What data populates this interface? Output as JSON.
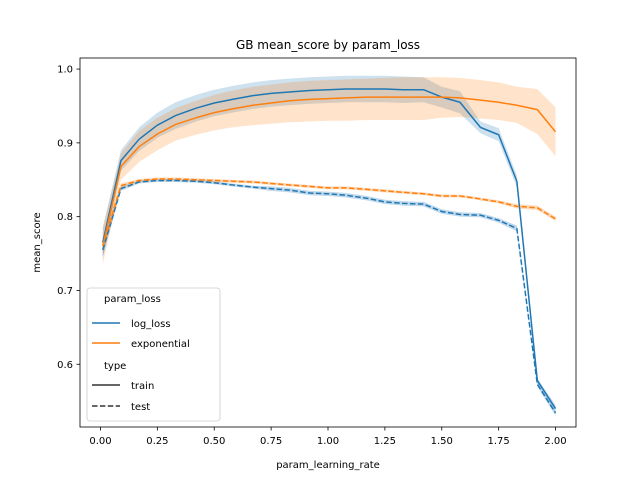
{
  "chart_data": {
    "type": "line",
    "title": "GB mean_score by param_loss",
    "xlabel": "param_learning_rate",
    "ylabel": "mean_score",
    "xlim": [
      -0.09,
      2.09
    ],
    "ylim": [
      0.515,
      1.015
    ],
    "xticks": [
      0.0,
      0.25,
      0.5,
      0.75,
      1.0,
      1.25,
      1.5,
      1.75,
      2.0
    ],
    "xtick_labels": [
      "0.00",
      "0.25",
      "0.50",
      "0.75",
      "1.00",
      "1.25",
      "1.50",
      "1.75",
      "2.00"
    ],
    "yticks": [
      0.6,
      0.7,
      0.8,
      0.9,
      1.0
    ],
    "ytick_labels": [
      "0.6",
      "0.7",
      "0.8",
      "0.9",
      "1.0"
    ],
    "grid": false,
    "legend": {
      "placement": "lower-left",
      "hue_title": "param_loss",
      "style_title": "type",
      "hue_entries": [
        {
          "label": "log_loss",
          "color": "#1f77b4"
        },
        {
          "label": "exponential",
          "color": "#ff7f0e"
        }
      ],
      "style_entries": [
        {
          "label": "train",
          "dash": "solid"
        },
        {
          "label": "test",
          "dash": "dashed"
        }
      ]
    },
    "series": [
      {
        "loss": "log_loss",
        "type": "train",
        "color": "#1f77b4",
        "dash": "solid",
        "x": [
          0.01,
          0.09,
          0.17,
          0.25,
          0.33,
          0.42,
          0.5,
          0.58,
          0.67,
          0.75,
          0.83,
          0.92,
          1.0,
          1.08,
          1.17,
          1.25,
          1.33,
          1.42,
          1.5,
          1.58,
          1.67,
          1.75,
          1.83,
          1.92,
          2.0
        ],
        "y": [
          0.765,
          0.876,
          0.905,
          0.924,
          0.937,
          0.947,
          0.954,
          0.959,
          0.964,
          0.967,
          0.969,
          0.971,
          0.972,
          0.973,
          0.973,
          0.973,
          0.972,
          0.972,
          0.962,
          0.955,
          0.921,
          0.911,
          0.848,
          0.578,
          0.54
        ],
        "lower": [
          0.745,
          0.862,
          0.889,
          0.907,
          0.919,
          0.929,
          0.936,
          0.941,
          0.946,
          0.949,
          0.951,
          0.953,
          0.954,
          0.955,
          0.955,
          0.955,
          0.954,
          0.955,
          0.948,
          0.94,
          0.913,
          0.902,
          0.84,
          0.575,
          0.535
        ],
        "upper": [
          0.785,
          0.89,
          0.921,
          0.941,
          0.955,
          0.965,
          0.972,
          0.977,
          0.982,
          0.985,
          0.987,
          0.989,
          0.99,
          0.991,
          0.991,
          0.991,
          0.99,
          0.989,
          0.976,
          0.97,
          0.929,
          0.92,
          0.856,
          0.581,
          0.545
        ]
      },
      {
        "loss": "exponential",
        "type": "train",
        "color": "#ff7f0e",
        "dash": "solid",
        "x": [
          0.01,
          0.09,
          0.17,
          0.25,
          0.33,
          0.42,
          0.5,
          0.58,
          0.67,
          0.75,
          0.83,
          0.92,
          1.0,
          1.08,
          1.17,
          1.25,
          1.33,
          1.42,
          1.5,
          1.58,
          1.67,
          1.75,
          1.83,
          1.92,
          2.0
        ],
        "y": [
          0.76,
          0.868,
          0.895,
          0.912,
          0.925,
          0.934,
          0.941,
          0.946,
          0.951,
          0.954,
          0.957,
          0.959,
          0.96,
          0.961,
          0.962,
          0.962,
          0.962,
          0.962,
          0.962,
          0.961,
          0.958,
          0.955,
          0.951,
          0.945,
          0.915
        ],
        "lower": [
          0.735,
          0.85,
          0.874,
          0.89,
          0.903,
          0.911,
          0.917,
          0.921,
          0.924,
          0.926,
          0.928,
          0.929,
          0.93,
          0.93,
          0.931,
          0.931,
          0.931,
          0.931,
          0.934,
          0.935,
          0.933,
          0.931,
          0.927,
          0.912,
          0.882
        ],
        "upper": [
          0.785,
          0.886,
          0.916,
          0.934,
          0.947,
          0.957,
          0.965,
          0.971,
          0.976,
          0.979,
          0.982,
          0.984,
          0.985,
          0.986,
          0.987,
          0.988,
          0.989,
          0.989,
          0.989,
          0.988,
          0.985,
          0.982,
          0.976,
          0.973,
          0.948
        ]
      },
      {
        "loss": "log_loss",
        "type": "test",
        "color": "#1f77b4",
        "dash": "dashed",
        "x": [
          0.01,
          0.09,
          0.17,
          0.25,
          0.33,
          0.42,
          0.5,
          0.58,
          0.67,
          0.75,
          0.83,
          0.92,
          1.0,
          1.08,
          1.17,
          1.25,
          1.33,
          1.42,
          1.5,
          1.58,
          1.67,
          1.75,
          1.83,
          1.92,
          2.0
        ],
        "y": [
          0.755,
          0.838,
          0.847,
          0.849,
          0.849,
          0.848,
          0.846,
          0.843,
          0.84,
          0.838,
          0.836,
          0.832,
          0.831,
          0.829,
          0.825,
          0.82,
          0.818,
          0.817,
          0.807,
          0.803,
          0.802,
          0.795,
          0.784,
          0.573,
          0.534
        ],
        "lower": [
          0.745,
          0.835,
          0.845,
          0.847,
          0.847,
          0.846,
          0.844,
          0.841,
          0.838,
          0.835,
          0.833,
          0.829,
          0.828,
          0.826,
          0.822,
          0.817,
          0.815,
          0.814,
          0.804,
          0.8,
          0.799,
          0.792,
          0.78,
          0.57,
          0.53
        ],
        "upper": [
          0.765,
          0.841,
          0.849,
          0.851,
          0.851,
          0.85,
          0.848,
          0.845,
          0.842,
          0.841,
          0.839,
          0.835,
          0.834,
          0.832,
          0.828,
          0.823,
          0.821,
          0.82,
          0.81,
          0.806,
          0.805,
          0.798,
          0.788,
          0.576,
          0.538
        ]
      },
      {
        "loss": "exponential",
        "type": "test",
        "color": "#ff7f0e",
        "dash": "dashed",
        "x": [
          0.01,
          0.09,
          0.17,
          0.25,
          0.33,
          0.42,
          0.5,
          0.58,
          0.67,
          0.75,
          0.83,
          0.92,
          1.0,
          1.08,
          1.17,
          1.25,
          1.33,
          1.42,
          1.5,
          1.58,
          1.67,
          1.75,
          1.83,
          1.92,
          2.0
        ],
        "y": [
          0.76,
          0.842,
          0.849,
          0.851,
          0.851,
          0.85,
          0.849,
          0.848,
          0.847,
          0.845,
          0.843,
          0.841,
          0.839,
          0.839,
          0.837,
          0.835,
          0.833,
          0.831,
          0.828,
          0.828,
          0.824,
          0.82,
          0.814,
          0.812,
          0.797
        ],
        "lower": [
          0.75,
          0.839,
          0.847,
          0.849,
          0.849,
          0.848,
          0.847,
          0.846,
          0.845,
          0.843,
          0.841,
          0.839,
          0.837,
          0.837,
          0.835,
          0.833,
          0.831,
          0.829,
          0.826,
          0.826,
          0.822,
          0.818,
          0.811,
          0.809,
          0.794
        ],
        "upper": [
          0.77,
          0.845,
          0.851,
          0.853,
          0.853,
          0.852,
          0.851,
          0.85,
          0.849,
          0.847,
          0.845,
          0.843,
          0.841,
          0.841,
          0.839,
          0.837,
          0.835,
          0.833,
          0.83,
          0.83,
          0.826,
          0.822,
          0.817,
          0.815,
          0.8
        ]
      }
    ]
  }
}
